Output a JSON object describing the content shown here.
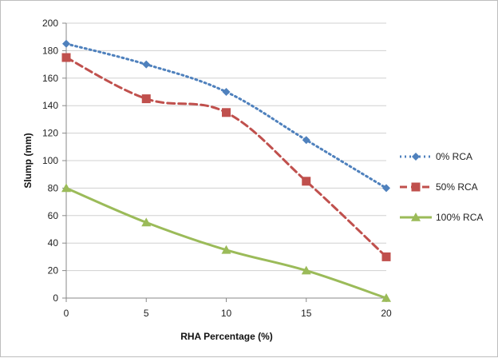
{
  "chart_data": {
    "type": "line",
    "x": [
      0,
      5,
      10,
      15,
      20
    ],
    "xlabel": "RHA Percentage (%)",
    "ylabel": "Slump (mm)",
    "xlim": [
      0,
      20
    ],
    "ylim": [
      0,
      200
    ],
    "x_ticks": [
      0,
      5,
      10,
      15,
      20
    ],
    "y_ticks": [
      0,
      20,
      40,
      60,
      80,
      100,
      120,
      140,
      160,
      180,
      200
    ],
    "grid": "horizontal",
    "legend_position": "right",
    "series": [
      {
        "name": "0% RCA",
        "values": [
          185,
          170,
          150,
          115,
          80
        ],
        "color": "#4f81bd",
        "line_style": "dotted",
        "marker": "diamond"
      },
      {
        "name": "50% RCA",
        "values": [
          175,
          145,
          135,
          85,
          30
        ],
        "color": "#c0504d",
        "line_style": "dashed",
        "marker": "square"
      },
      {
        "name": "100% RCA",
        "values": [
          80,
          55,
          35,
          20,
          0
        ],
        "color": "#9bbb59",
        "line_style": "solid",
        "marker": "triangle"
      }
    ]
  }
}
